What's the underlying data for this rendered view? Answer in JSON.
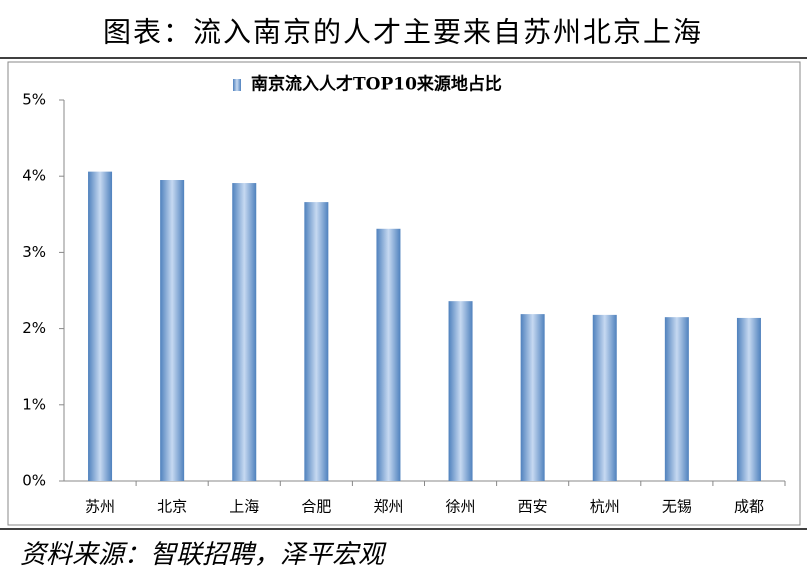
{
  "header": {
    "title": "图表：流入南京的人才主要来自苏州北京上海"
  },
  "chart_data": {
    "type": "bar",
    "categories": [
      "苏州",
      "北京",
      "上海",
      "合肥",
      "郑州",
      "徐州",
      "西安",
      "杭州",
      "无锡",
      "成都"
    ],
    "series": [
      {
        "name": "南京流入人才TOP10来源地占比",
        "color": "#4f81bd",
        "values": [
          4.06,
          3.95,
          3.91,
          3.66,
          3.31,
          2.36,
          2.19,
          2.18,
          2.15,
          2.14
        ]
      }
    ],
    "ylim": [
      0,
      5
    ],
    "yticks": [
      {
        "value": 0,
        "label": "0%"
      },
      {
        "value": 1,
        "label": "1%"
      },
      {
        "value": 2,
        "label": "2%"
      },
      {
        "value": 3,
        "label": "3%"
      },
      {
        "value": 4,
        "label": "4%"
      },
      {
        "value": 5,
        "label": "5%"
      }
    ],
    "grid": false
  },
  "footer": {
    "source": "资料来源：智联招聘，泽平宏观"
  }
}
